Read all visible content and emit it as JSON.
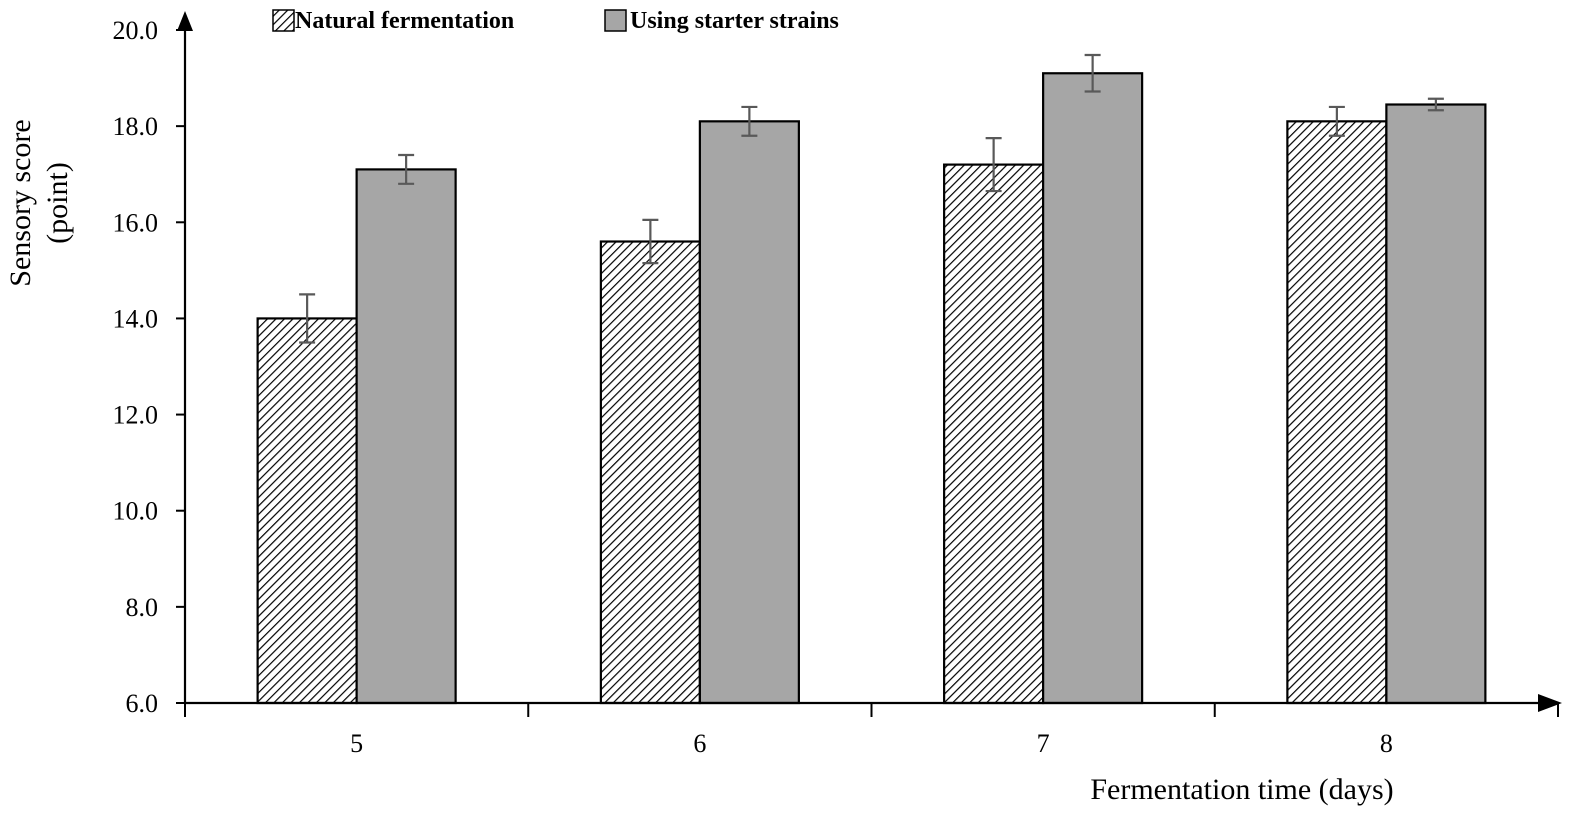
{
  "chart_data": {
    "type": "bar",
    "title": "",
    "xlabel": "Fermentation time (days)",
    "ylabel_lines": [
      "Sensory score",
      "(point)"
    ],
    "categories": [
      "5",
      "6",
      "7",
      "8"
    ],
    "ylim": [
      6.0,
      20.0
    ],
    "y_ticks": [
      "6.0",
      "8.0",
      "10.0",
      "12.0",
      "14.0",
      "16.0",
      "18.0",
      "20.0"
    ],
    "grid": false,
    "legend_position": "top-left",
    "series": [
      {
        "name": "Natural fermentation",
        "fill": "hatched",
        "values": [
          14.0,
          15.6,
          17.2,
          18.1
        ],
        "errors": [
          0.5,
          0.45,
          0.55,
          0.3
        ]
      },
      {
        "name": "Using starter strains",
        "fill": "#a6a6a6",
        "values": [
          17.1,
          18.1,
          19.1,
          18.45
        ],
        "errors": [
          0.3,
          0.3,
          0.38,
          0.12
        ]
      }
    ],
    "colors": {
      "bar_gray": "#a6a6a6",
      "bar_outline": "#000000",
      "error_bar": "#595959",
      "axis": "#000000"
    }
  }
}
